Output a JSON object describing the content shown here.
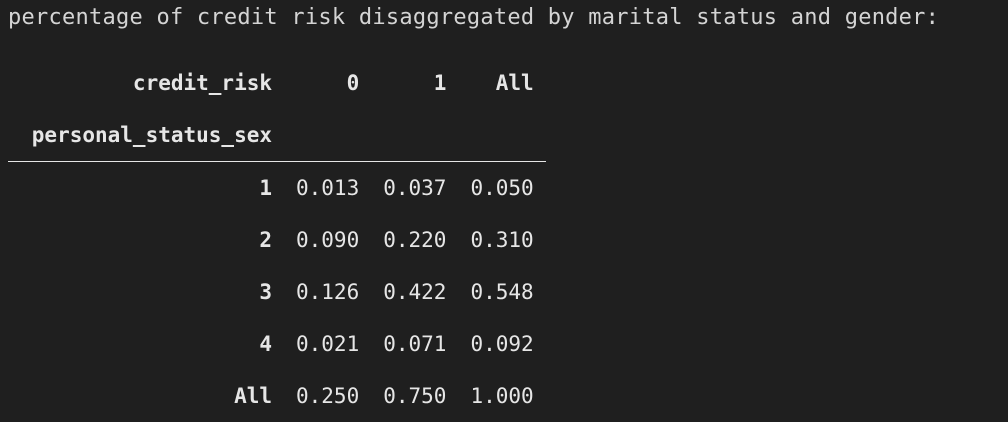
{
  "caption": "percentage of credit risk disaggregated by marital status and gender:",
  "table": {
    "columns_name": "credit_risk",
    "columns": [
      "0",
      "1",
      "All"
    ],
    "index_name": "personal_status_sex",
    "rows": [
      {
        "index": "1",
        "values": [
          "0.013",
          "0.037",
          "0.050"
        ]
      },
      {
        "index": "2",
        "values": [
          "0.090",
          "0.220",
          "0.310"
        ]
      },
      {
        "index": "3",
        "values": [
          "0.126",
          "0.422",
          "0.548"
        ]
      },
      {
        "index": "4",
        "values": [
          "0.021",
          "0.071",
          "0.092"
        ]
      },
      {
        "index": "All",
        "values": [
          "0.250",
          "0.750",
          "1.000"
        ]
      }
    ]
  },
  "colors": {
    "background": "#1f1f1f",
    "text": "#d4d4d4"
  }
}
